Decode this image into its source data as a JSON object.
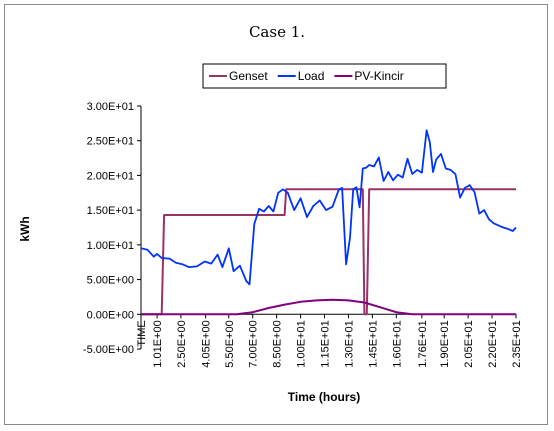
{
  "chart_data": {
    "type": "line",
    "title": "Case 1.",
    "xlabel": "Time (hours)",
    "ylabel": "kWh",
    "ylim": [
      -5,
      30
    ],
    "xlim": [
      0,
      23.5
    ],
    "yticks": [
      -5,
      0,
      5,
      10,
      15,
      20,
      25,
      30
    ],
    "ytick_labels": [
      "-5.00E+00",
      "0.00E+00",
      "5.00E+00",
      "1.00E+01",
      "1.50E+01",
      "2.00E+01",
      "2.50E+01",
      "3.00E+01"
    ],
    "xticks": [
      0,
      1.01,
      2.5,
      4.05,
      5.5,
      7.0,
      8.5,
      10.0,
      11.5,
      13.0,
      14.5,
      16.0,
      17.6,
      19.0,
      20.5,
      22.0,
      23.5
    ],
    "xtick_labels": [
      "TIME",
      "1.01E+00",
      "2.50E+00",
      "4.05E+00",
      "5.50E+00",
      "7.00E+00",
      "8.50E+00",
      "1.00E+01",
      "1.15E+01",
      "1.30E+01",
      "1.45E+01",
      "1.60E+01",
      "1.76E+01",
      "1.90E+01",
      "2.05E+01",
      "2.20E+01",
      "2.35E+01"
    ],
    "grid": false,
    "legend_position": "top",
    "series": [
      {
        "name": "Genset",
        "color": "#993366",
        "x": [
          0,
          1.3,
          1.45,
          9.0,
          9.1,
          13.9,
          14.0,
          14.15,
          14.3,
          14.4,
          23.5
        ],
        "y": [
          0,
          0,
          14.3,
          14.3,
          18.0,
          18.0,
          0,
          0,
          18.0,
          18.0,
          18.0
        ]
      },
      {
        "name": "Load",
        "color": "#0033ff",
        "x": [
          0,
          0.4,
          0.8,
          1.0,
          1.3,
          1.8,
          2.2,
          2.6,
          3.0,
          3.5,
          4.0,
          4.4,
          4.8,
          5.1,
          5.5,
          5.8,
          6.2,
          6.6,
          6.8,
          7.1,
          7.4,
          7.7,
          8.0,
          8.3,
          8.6,
          8.9,
          9.2,
          9.6,
          10.0,
          10.4,
          10.8,
          11.2,
          11.6,
          12.0,
          12.4,
          12.6,
          12.85,
          13.1,
          13.3,
          13.5,
          13.7,
          13.9,
          14.1,
          14.3,
          14.6,
          14.9,
          15.2,
          15.5,
          15.8,
          16.1,
          16.4,
          16.7,
          17.0,
          17.3,
          17.6,
          17.9,
          18.1,
          18.3,
          18.5,
          18.8,
          19.1,
          19.4,
          19.7,
          20.0,
          20.3,
          20.6,
          20.9,
          21.2,
          21.5,
          21.8,
          22.1,
          22.4,
          22.7,
          23.0,
          23.3,
          23.5
        ],
        "y": [
          9.5,
          9.3,
          8.3,
          8.7,
          8.1,
          8.0,
          7.4,
          7.2,
          6.8,
          6.9,
          7.6,
          7.3,
          8.6,
          6.8,
          9.5,
          6.2,
          7.0,
          4.8,
          4.3,
          13.0,
          15.2,
          14.8,
          15.6,
          14.8,
          17.5,
          18.0,
          17.5,
          15.0,
          16.7,
          14.0,
          15.6,
          16.4,
          15.0,
          15.5,
          18.0,
          18.2,
          7.2,
          11.0,
          18.0,
          18.3,
          15.4,
          21.0,
          21.1,
          21.5,
          21.3,
          22.6,
          19.2,
          20.5,
          19.3,
          20.1,
          19.7,
          22.4,
          20.2,
          20.8,
          20.4,
          26.5,
          24.8,
          20.5,
          22.3,
          23.1,
          21.0,
          20.8,
          20.2,
          16.8,
          18.2,
          18.6,
          17.6,
          14.5,
          15.0,
          13.7,
          13.1,
          12.8,
          12.5,
          12.3,
          12.0,
          12.5
        ]
      },
      {
        "name": "PV-Kincir",
        "color": "#800080",
        "x": [
          0,
          6.0,
          7.0,
          8.0,
          9.0,
          10.0,
          11.0,
          12.0,
          13.0,
          14.0,
          15.0,
          16.0,
          17.0,
          23.5
        ],
        "y": [
          0,
          0,
          0.3,
          0.9,
          1.4,
          1.8,
          2.0,
          2.1,
          2.0,
          1.7,
          1.0,
          0.3,
          0,
          0
        ]
      }
    ]
  }
}
